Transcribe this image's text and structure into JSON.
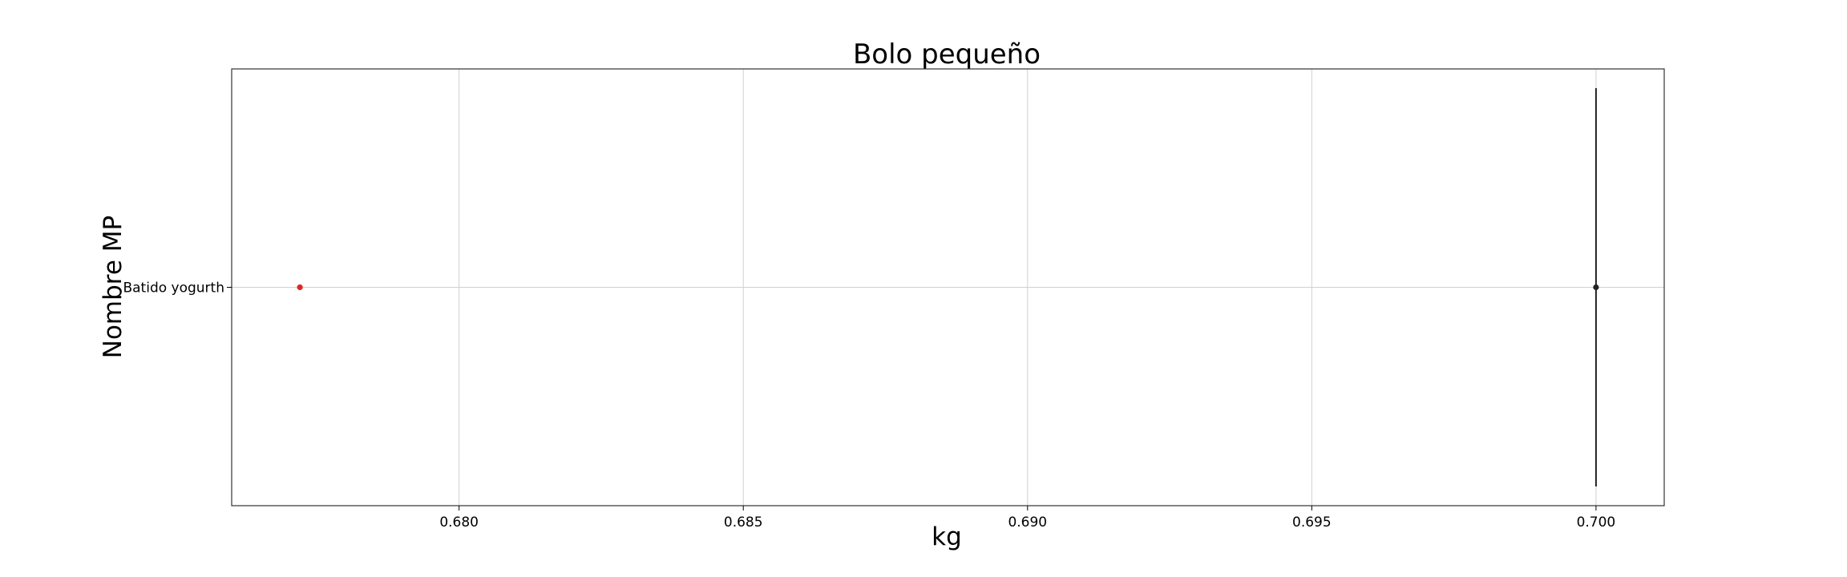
{
  "chart_data": {
    "type": "scatter",
    "title": "Bolo pequeño",
    "xlabel": "kg",
    "ylabel": "Nombre MP",
    "categories": [
      "Batido yogurth"
    ],
    "xlim": [
      0.676,
      0.7012
    ],
    "xticks": [
      0.68,
      0.685,
      0.69,
      0.695,
      0.7
    ],
    "xtick_labels": [
      "0.680",
      "0.685",
      "0.690",
      "0.695",
      "0.700"
    ],
    "grid": true,
    "series": [
      {
        "color": "#e8231f",
        "points": [
          {
            "category": "Batido yogurth",
            "x": 0.6772
          }
        ]
      },
      {
        "color": "#222222",
        "points": [
          {
            "category": "Batido yogurth",
            "x": 0.7
          }
        ],
        "vertical_line": true
      }
    ]
  }
}
